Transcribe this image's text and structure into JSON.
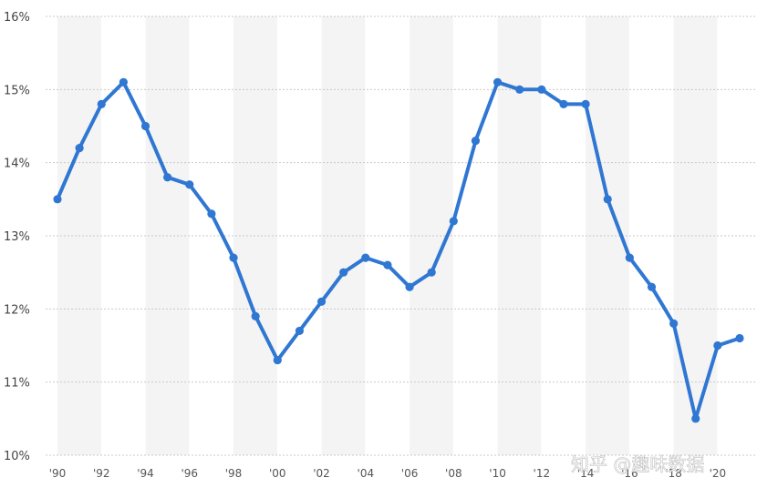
{
  "chart_data": {
    "type": "line",
    "title": "",
    "xlabel": "",
    "ylabel": "",
    "x": [
      1990,
      1991,
      1992,
      1993,
      1994,
      1995,
      1996,
      1997,
      1998,
      1999,
      2000,
      2001,
      2002,
      2003,
      2004,
      2005,
      2006,
      2007,
      2008,
      2009,
      2010,
      2011,
      2012,
      2013,
      2014,
      2015,
      2016,
      2017,
      2018,
      2019,
      2020,
      2021
    ],
    "series": [
      {
        "values": [
          13.5,
          14.2,
          14.8,
          15.1,
          14.5,
          13.8,
          13.7,
          13.3,
          12.7,
          11.9,
          11.3,
          11.7,
          12.1,
          12.5,
          12.7,
          12.6,
          12.3,
          12.5,
          13.2,
          14.3,
          15.1,
          15.0,
          15.0,
          14.8,
          14.8,
          13.5,
          12.7,
          12.3,
          11.8,
          10.5,
          11.5,
          11.6
        ],
        "color": "#2f77d2"
      }
    ],
    "ylim": [
      10,
      16
    ],
    "xlim": [
      1990,
      2021
    ],
    "yticks": [
      10,
      11,
      12,
      13,
      14,
      15,
      16
    ],
    "ytick_labels": [
      "10%",
      "11%",
      "12%",
      "13%",
      "14%",
      "15%",
      "16%"
    ],
    "xtick_years": [
      1990,
      1992,
      1994,
      1996,
      1998,
      2000,
      2002,
      2004,
      2006,
      2008,
      2010,
      2012,
      2014,
      2016,
      2018,
      2020
    ],
    "xtick_labels": [
      "'90",
      "'92",
      "'94",
      "'96",
      "'98",
      "'00",
      "'02",
      "'04",
      "'06",
      "'08",
      "'10",
      "'12",
      "'14",
      "'16",
      "'18",
      "'20"
    ],
    "grid": true,
    "legend": "none"
  },
  "watermark": "知乎 @趣味数据"
}
